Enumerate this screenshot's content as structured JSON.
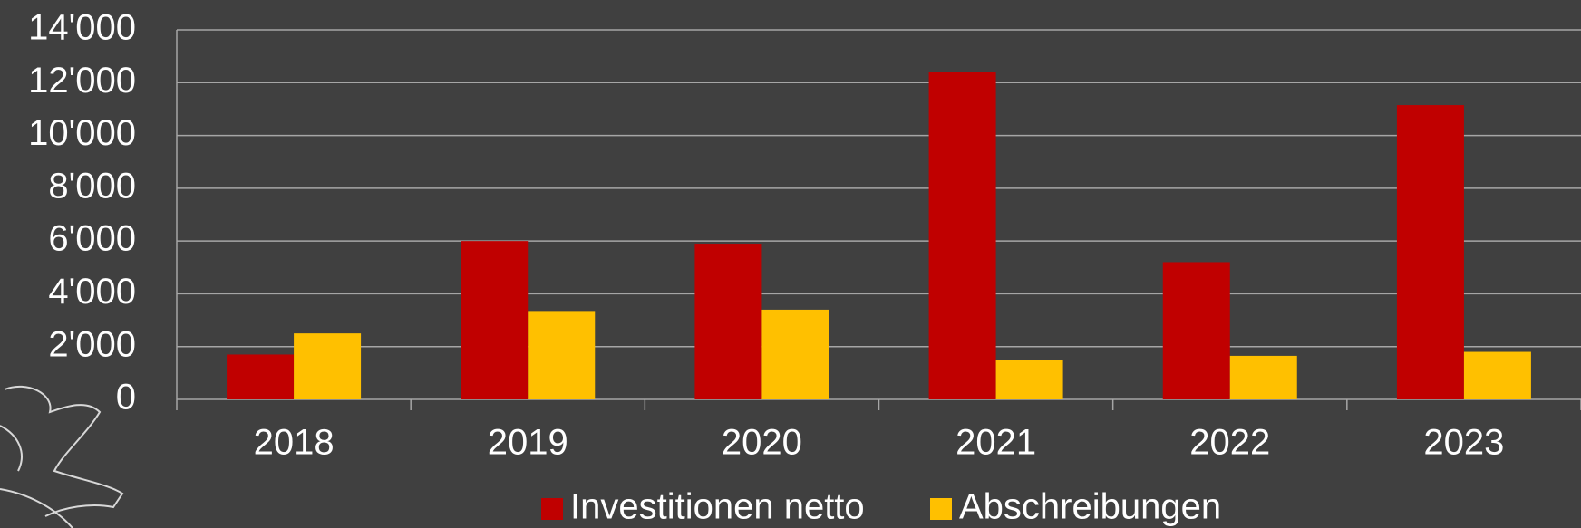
{
  "chart_data": {
    "type": "bar",
    "categories": [
      "2018",
      "2019",
      "2020",
      "2021",
      "2022",
      "2023"
    ],
    "series": [
      {
        "name": "Investitionen netto",
        "color": "#c00000",
        "values": [
          1700,
          6000,
          5900,
          12400,
          5200,
          11150
        ]
      },
      {
        "name": "Abschreibungen",
        "color": "#ffc000",
        "values": [
          2500,
          3350,
          3400,
          1500,
          1650,
          1800
        ]
      }
    ],
    "ylim": [
      0,
      14000
    ],
    "yticks": [
      0,
      {
        "value": 2000,
        "label": "2'000"
      },
      {
        "value": 4000,
        "label": "4'000"
      },
      {
        "value": 6000,
        "label": "6'000"
      },
      {
        "value": 8000,
        "label": "8'000"
      },
      {
        "value": 10000,
        "label": "10'000"
      },
      {
        "value": 12000,
        "label": "12'000"
      },
      {
        "value": 14000,
        "label": "14'000"
      }
    ],
    "grid": true,
    "legend": "bottom"
  }
}
